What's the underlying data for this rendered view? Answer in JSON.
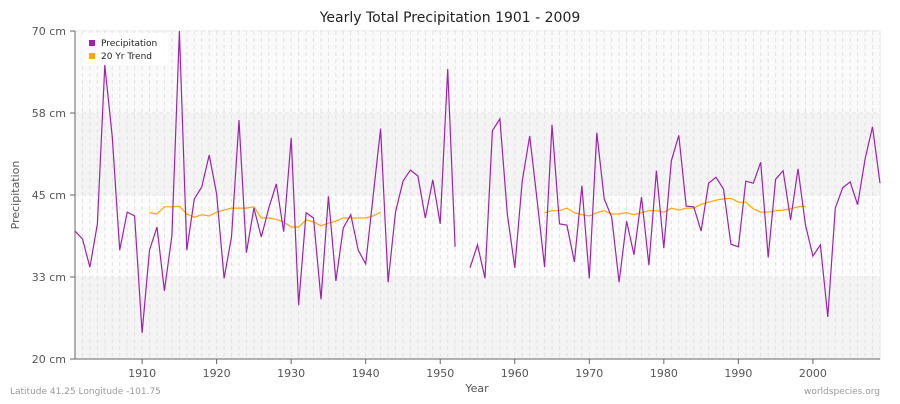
{
  "chart_data": {
    "type": "line",
    "title": "Yearly Total Precipitation 1901 - 2009",
    "xlabel": "Year",
    "ylabel": "Precipitation",
    "xlim": [
      1901,
      2009
    ],
    "ylim": [
      20,
      70
    ],
    "x_ticks": [
      1910,
      1920,
      1930,
      1940,
      1950,
      1960,
      1970,
      1980,
      1990,
      2000
    ],
    "y_ticks": [
      {
        "value": 20,
        "label": "20 cm"
      },
      {
        "value": 32.5,
        "label": "33 cm"
      },
      {
        "value": 45,
        "label": "45 cm"
      },
      {
        "value": 57.5,
        "label": "58 cm"
      },
      {
        "value": 70,
        "label": "70 cm"
      }
    ],
    "grid": true,
    "legend_position": "top-left",
    "series": [
      {
        "name": "Precipitation",
        "color": "#a020b0",
        "start_year": 1901,
        "values": [
          39.5,
          38.3,
          34.0,
          40.6,
          64.8,
          53.8,
          36.6,
          42.4,
          41.8,
          24.0,
          36.6,
          40.1,
          30.4,
          38.8,
          70.0,
          36.6,
          44.4,
          46.2,
          51.1,
          45.2,
          32.3,
          38.6,
          56.4,
          36.2,
          43.0,
          38.6,
          43.0,
          46.7,
          39.4,
          53.7,
          28.2,
          42.3,
          41.5,
          29.1,
          44.8,
          31.9,
          40.0,
          42.0,
          36.6,
          34.5,
          44.8,
          55.1,
          31.7,
          42.4,
          47.1,
          48.8,
          47.9,
          41.5,
          47.3,
          40.6,
          64.2,
          37.1,
          null,
          33.9,
          37.4,
          32.3,
          54.8,
          56.6,
          42.1,
          33.9,
          47.1,
          54.0,
          44.2,
          34.0,
          55.7,
          40.6,
          40.4,
          34.8,
          46.4,
          32.3,
          54.5,
          44.4,
          41.6,
          31.7,
          41.0,
          35.9,
          44.7,
          34.3,
          48.7,
          36.9,
          50.2,
          54.1,
          43.3,
          43.2,
          39.5,
          46.8,
          47.7,
          45.9,
          37.5,
          37.1,
          47.1,
          46.8,
          50.0,
          35.5,
          47.4,
          48.7,
          41.2,
          49.0,
          40.4,
          35.7,
          37.4,
          26.4,
          43.0,
          46.1,
          47.0,
          43.5,
          50.5,
          55.4,
          46.8
        ]
      },
      {
        "name": "20 Yr Trend",
        "color": "#ffa500",
        "segments": [
          {
            "start_year": 1911,
            "values": [
              42.3,
              42.1,
              43.2,
              43.2,
              43.3,
              42.1,
              41.6,
              42.0,
              41.8,
              42.4,
              42.7,
              43.0,
              43.0,
              43.0,
              43.2,
              41.5,
              41.5,
              41.3,
              40.9,
              40.1,
              40.1,
              41.2,
              40.9,
              40.3,
              40.7,
              41.0,
              41.5,
              41.5,
              41.5,
              41.5,
              41.8,
              42.4
            ]
          },
          {
            "start_year": 1964,
            "values": [
              42.3,
              42.6,
              42.6,
              43.0,
              42.3,
              42.0,
              41.8,
              42.3,
              42.6,
              42.1,
              42.1,
              42.3,
              42.0,
              42.3,
              42.6,
              42.6,
              42.4,
              43.0,
              42.7,
              43.0,
              43.0,
              43.6,
              43.9,
              44.2,
              44.4,
              44.5,
              43.9,
              43.9,
              42.9,
              42.4,
              42.4,
              42.6,
              42.7,
              42.9,
              43.2,
              43.3
            ]
          }
        ]
      }
    ]
  },
  "footer": {
    "location": "Latitude 41.25 Longitude -101.75",
    "source": "worldspecies.org"
  }
}
